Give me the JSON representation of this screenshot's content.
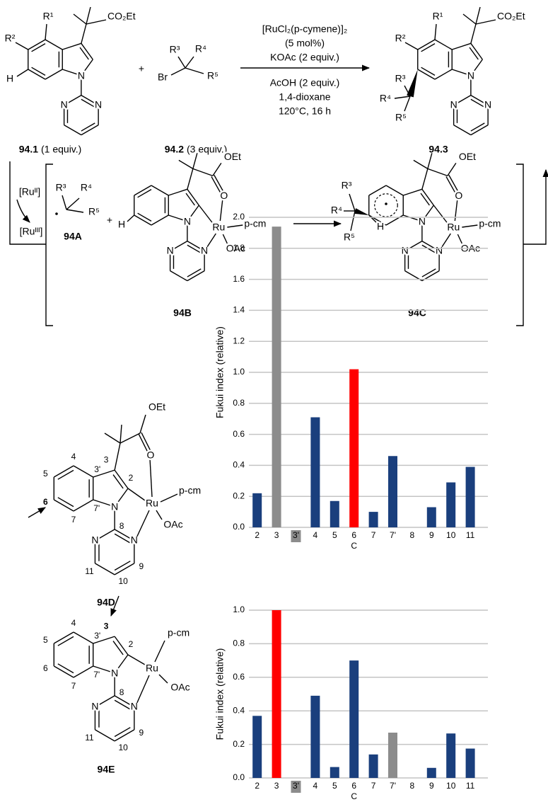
{
  "scheme": {
    "reaction": {
      "conditions_above": [
        "[RuCl₂(p-cymene)]₂",
        "(5 mol%)",
        "KOAc (2 equiv.)"
      ],
      "conditions_below": [
        "AcOH (2 equiv.)",
        "1,4-dioxane",
        "120°C, 16 h"
      ]
    },
    "compounds": {
      "c941": {
        "id": "94.1",
        "note": "(1 equiv.)"
      },
      "c942": {
        "id": "94.2",
        "note": "(3 equiv.)"
      },
      "c943": "94.3",
      "A": "94A",
      "B": "94B",
      "C": "94C",
      "D": "94D",
      "E": "94E"
    },
    "atoms": {
      "N": "N",
      "H": "H",
      "O": "O",
      "Br": "Br",
      "Ru": "Ru",
      "OEt": "OEt",
      "OAc": "OAc",
      "CO2Et": "CO₂Et",
      "pcm": "p-cm",
      "R1": "R¹",
      "R2": "R²",
      "R3": "R³",
      "R4": "R⁴",
      "R5": "R⁵"
    },
    "plus": "+",
    "ru2": "[Ruᴵᴵ]",
    "ru3": "[Ruᴵᴵᴵ]",
    "atom_numbers": [
      "2",
      "3",
      "3'",
      "4",
      "5",
      "6",
      "7",
      "7'",
      "8",
      "9",
      "10",
      "11"
    ]
  },
  "chart_data": [
    {
      "type": "bar",
      "ylabel": "Fukui index (relative)",
      "xlabel": "C",
      "categories": [
        "2",
        "3",
        "3'",
        "4",
        "5",
        "6",
        "7",
        "7'",
        "8",
        "9",
        "10",
        "11"
      ],
      "values": [
        0.22,
        1.94,
        0,
        0.71,
        0.17,
        1.02,
        0.1,
        0.46,
        0,
        0.13,
        0.29,
        0.39
      ],
      "colors": [
        "#1a3f7d",
        "#8c8c8c",
        "#8c8c8c",
        "#1a3f7d",
        "#1a3f7d",
        "#ff0000",
        "#1a3f7d",
        "#1a3f7d",
        "#1a3f7d",
        "#1a3f7d",
        "#1a3f7d",
        "#1a3f7d"
      ],
      "category_highlight": {
        "index": 2,
        "color": "#8c8c8c"
      },
      "ylim": [
        0,
        2
      ],
      "yticks": [
        {
          "value": 0,
          "label": "0.0"
        },
        0.2,
        0.4,
        0.6,
        0.8,
        {
          "value": 1,
          "label": "1.0"
        },
        1.2,
        1.4,
        1.6,
        1.8,
        {
          "value": 2,
          "label": "2.0"
        }
      ],
      "grid": true
    },
    {
      "type": "bar",
      "ylabel": "Fukui index (relative)",
      "xlabel": "C",
      "categories": [
        "2",
        "3",
        "3'",
        "4",
        "5",
        "6",
        "7",
        "7'",
        "8",
        "9",
        "10",
        "11"
      ],
      "values": [
        0.37,
        1.0,
        0,
        0.49,
        0.065,
        0.7,
        0.14,
        0.27,
        0,
        0.06,
        0.265,
        0.175
      ],
      "colors": [
        "#1a3f7d",
        "#ff0000",
        "#8c8c8c",
        "#1a3f7d",
        "#1a3f7d",
        "#1a3f7d",
        "#1a3f7d",
        "#8c8c8c",
        "#1a3f7d",
        "#1a3f7d",
        "#1a3f7d",
        "#1a3f7d"
      ],
      "category_highlight": {
        "index": 2,
        "color": "#8c8c8c"
      },
      "ylim": [
        0,
        1
      ],
      "yticks": [
        {
          "value": 0,
          "label": "0.0"
        },
        0.2,
        0.4,
        0.6,
        0.8,
        {
          "value": 1,
          "label": "1.0"
        }
      ],
      "grid": true
    }
  ]
}
